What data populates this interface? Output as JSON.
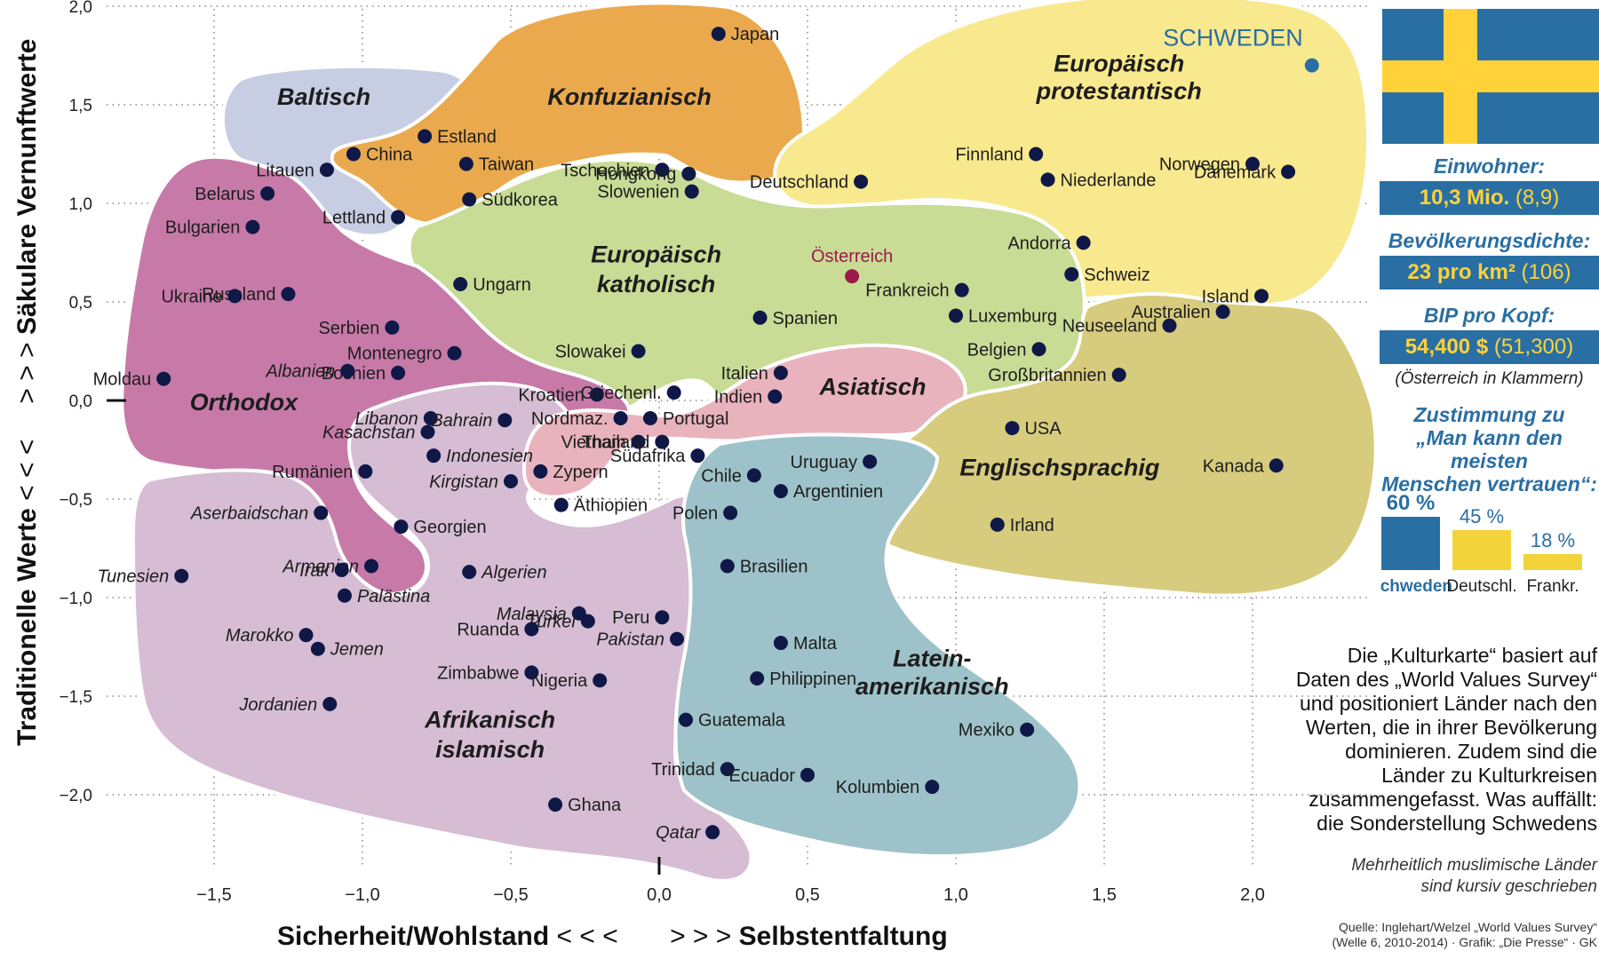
{
  "chart_data": {
    "type": "scatter",
    "xlabel_left": "Sicherheit/Wohlstand",
    "xlabel_left_arrows": "< < <",
    "xlabel_right_arrows": "> > >",
    "xlabel_right": "Selbstentfaltung",
    "ylabel_bottom": "Traditionelle Werte",
    "ylabel_bottom_arrows": "< < <",
    "ylabel_top_arrows": "> > >",
    "ylabel_top": "Säkulare Vernunftwerte",
    "xlim": [
      -2.1,
      2.2
    ],
    "ylim": [
      -2.25,
      2.0
    ],
    "x_ticks": [
      "−1,5",
      "−1,0",
      "−0,5",
      "0,0",
      "0,5",
      "1,0",
      "1,5",
      "2,0"
    ],
    "x_tick_values": [
      -1.5,
      -1.0,
      -0.5,
      0.0,
      0.5,
      1.0,
      1.5,
      2.0
    ],
    "y_ticks": [
      "2,0",
      "1,5",
      "1,0",
      "0,5",
      "0,0",
      "−0,5",
      "−1,0",
      "−1,5",
      "−2,0"
    ],
    "y_tick_values": [
      2.0,
      1.5,
      1.0,
      0.5,
      0.0,
      -0.5,
      -1.0,
      -1.5,
      -2.0
    ],
    "groups": [
      {
        "name": "Baltisch",
        "color": "#c7cde3"
      },
      {
        "name": "Konfuzianisch",
        "color": "#eba94d"
      },
      {
        "name": "Europäisch protestantisch",
        "color": "#f9e98e"
      },
      {
        "name": "Europäisch katholisch",
        "color": "#c9dc96"
      },
      {
        "name": "Orthodox",
        "color": "#c77aa8"
      },
      {
        "name": "Asiatisch",
        "color": "#e9b3bd"
      },
      {
        "name": "Englischsprachig",
        "color": "#d7cb7d"
      },
      {
        "name": "Afrikanisch islamisch",
        "color": "#d6bdd3"
      },
      {
        "name": "Lateinamerikanisch",
        "color": "#9ec2c9"
      }
    ],
    "region_labels": [
      {
        "text": "Baltisch",
        "x": -1.13,
        "y": 1.5
      },
      {
        "text": "Konfuzianisch",
        "x": -0.1,
        "y": 1.5
      },
      {
        "text": "Europäisch",
        "x": 1.55,
        "y": 1.67
      },
      {
        "text": "protestantisch",
        "x": 1.55,
        "y": 1.53
      },
      {
        "text": "Europäisch",
        "x": -0.01,
        "y": 0.7
      },
      {
        "text": "katholisch",
        "x": -0.01,
        "y": 0.55
      },
      {
        "text": "Orthodox",
        "x": -1.4,
        "y": -0.05
      },
      {
        "text": "Asiatisch",
        "x": 0.72,
        "y": 0.03
      },
      {
        "text": "Englischsprachig",
        "x": 1.35,
        "y": -0.38
      },
      {
        "text": "Afrikanisch",
        "x": -0.57,
        "y": -1.66
      },
      {
        "text": "islamisch",
        "x": -0.57,
        "y": -1.81
      },
      {
        "text": "Latein-",
        "x": 0.92,
        "y": -1.35
      },
      {
        "text": "amerikanisch",
        "x": 0.92,
        "y": -1.49
      }
    ],
    "points": [
      {
        "name": "Japan",
        "x": 0.2,
        "y": 1.86,
        "italic": false
      },
      {
        "name": "SCHWEDEN",
        "x": 2.2,
        "y": 1.7,
        "italic": false
      },
      {
        "name": "Estland",
        "x": -0.79,
        "y": 1.34,
        "italic": false
      },
      {
        "name": "Litauen",
        "x": -1.12,
        "y": 1.17,
        "italic": false
      },
      {
        "name": "China",
        "x": -1.03,
        "y": 1.25,
        "italic": false
      },
      {
        "name": "Taiwan",
        "x": -0.65,
        "y": 1.2,
        "italic": false
      },
      {
        "name": "Südkorea",
        "x": -0.64,
        "y": 1.02,
        "italic": false
      },
      {
        "name": "Tschechien",
        "x": 0.01,
        "y": 1.17,
        "italic": false
      },
      {
        "name": "Hongkong",
        "x": 0.1,
        "y": 1.15,
        "italic": false
      },
      {
        "name": "Slowenien",
        "x": 0.11,
        "y": 1.06,
        "italic": false
      },
      {
        "name": "Lettland",
        "x": -0.88,
        "y": 0.93,
        "italic": false
      },
      {
        "name": "Belarus",
        "x": -1.32,
        "y": 1.05,
        "italic": false
      },
      {
        "name": "Bulgarien",
        "x": -1.37,
        "y": 0.88,
        "italic": false
      },
      {
        "name": "Finnland",
        "x": 1.27,
        "y": 1.25,
        "italic": false
      },
      {
        "name": "Niederlande",
        "x": 1.31,
        "y": 1.12,
        "italic": false
      },
      {
        "name": "Norwegen",
        "x": 2.0,
        "y": 1.2,
        "italic": false
      },
      {
        "name": "Dänemark",
        "x": 2.12,
        "y": 1.16,
        "italic": false
      },
      {
        "name": "Deutschland",
        "x": 0.68,
        "y": 1.11,
        "italic": false
      },
      {
        "name": "Andorra",
        "x": 1.43,
        "y": 0.8,
        "italic": false
      },
      {
        "name": "Österreich",
        "x": 0.65,
        "y": 0.63,
        "italic": false,
        "highlight": true
      },
      {
        "name": "Schweiz",
        "x": 1.39,
        "y": 0.64,
        "italic": false
      },
      {
        "name": "Frankreich",
        "x": 1.02,
        "y": 0.56,
        "italic": false
      },
      {
        "name": "Luxemburg",
        "x": 1.0,
        "y": 0.43,
        "italic": false
      },
      {
        "name": "Island",
        "x": 2.03,
        "y": 0.53,
        "italic": false
      },
      {
        "name": "Australien",
        "x": 1.9,
        "y": 0.45,
        "italic": false
      },
      {
        "name": "Neuseeland",
        "x": 1.72,
        "y": 0.38,
        "italic": false
      },
      {
        "name": "Belgien",
        "x": 1.28,
        "y": 0.26,
        "italic": false
      },
      {
        "name": "Ungarn",
        "x": -0.67,
        "y": 0.59,
        "italic": false
      },
      {
        "name": "Russland",
        "x": -1.25,
        "y": 0.54,
        "italic": false
      },
      {
        "name": "Ukraine",
        "x": -1.43,
        "y": 0.53,
        "italic": false
      },
      {
        "name": "Serbien",
        "x": -0.9,
        "y": 0.37,
        "italic": false
      },
      {
        "name": "Montenegro",
        "x": -0.69,
        "y": 0.24,
        "italic": false
      },
      {
        "name": "Bosnien",
        "x": -0.88,
        "y": 0.14,
        "italic": false
      },
      {
        "name": "Albanien",
        "x": -1.05,
        "y": 0.15,
        "italic": false,
        "italic_label": true
      },
      {
        "name": "Moldau",
        "x": -1.67,
        "y": 0.11,
        "italic": false
      },
      {
        "name": "Spanien",
        "x": 0.34,
        "y": 0.42,
        "italic": false
      },
      {
        "name": "Slowakei",
        "x": -0.07,
        "y": 0.25,
        "italic": false
      },
      {
        "name": "Italien",
        "x": 0.41,
        "y": 0.14,
        "italic": false
      },
      {
        "name": "Kroatien",
        "x": -0.21,
        "y": 0.03,
        "italic": false
      },
      {
        "name": "Griechenl.",
        "x": 0.05,
        "y": 0.04,
        "italic": false
      },
      {
        "name": "Portugal",
        "x": -0.03,
        "y": -0.09,
        "italic": false
      },
      {
        "name": "Nordmaz.",
        "x": -0.13,
        "y": -0.09,
        "italic": false
      },
      {
        "name": "Indien",
        "x": 0.39,
        "y": 0.02,
        "italic": false
      },
      {
        "name": "Großbritannien",
        "x": 1.55,
        "y": 0.13,
        "italic": false
      },
      {
        "name": "USA",
        "x": 1.19,
        "y": -0.14,
        "italic": false
      },
      {
        "name": "Kanada",
        "x": 2.08,
        "y": -0.33,
        "italic": false
      },
      {
        "name": "Irland",
        "x": 1.14,
        "y": -0.63,
        "italic": false
      },
      {
        "name": "Libanon",
        "x": -0.77,
        "y": -0.09,
        "italic": false,
        "italic_label": true
      },
      {
        "name": "Bahrain",
        "x": -0.52,
        "y": -0.1,
        "italic": false,
        "italic_label": true
      },
      {
        "name": "Kasachstan",
        "x": -0.78,
        "y": -0.16,
        "italic": false,
        "italic_label": true
      },
      {
        "name": "Indonesien",
        "x": -0.76,
        "y": -0.28,
        "italic": false,
        "italic_label": true
      },
      {
        "name": "Vietnam",
        "x": -0.07,
        "y": -0.21,
        "italic": false
      },
      {
        "name": "Thailand",
        "x": 0.01,
        "y": -0.21,
        "italic": false
      },
      {
        "name": "Zypern",
        "x": -0.4,
        "y": -0.36,
        "italic": false
      },
      {
        "name": "Rumänien",
        "x": -0.99,
        "y": -0.36,
        "italic": false
      },
      {
        "name": "Kirgistan",
        "x": -0.5,
        "y": -0.41,
        "italic": false,
        "italic_label": true
      },
      {
        "name": "Äthiopien",
        "x": -0.33,
        "y": -0.53,
        "italic": false
      },
      {
        "name": "Südafrika",
        "x": 0.13,
        "y": -0.28,
        "italic": false
      },
      {
        "name": "Chile",
        "x": 0.32,
        "y": -0.38,
        "italic": false
      },
      {
        "name": "Argentinien",
        "x": 0.41,
        "y": -0.46,
        "italic": false
      },
      {
        "name": "Uruguay",
        "x": 0.71,
        "y": -0.31,
        "italic": false
      },
      {
        "name": "Polen",
        "x": 0.24,
        "y": -0.57,
        "italic": false
      },
      {
        "name": "Aserbaidschan",
        "x": -1.14,
        "y": -0.57,
        "italic": false,
        "italic_label": true
      },
      {
        "name": "Georgien",
        "x": -0.87,
        "y": -0.64,
        "italic": false
      },
      {
        "name": "Armenien",
        "x": -0.97,
        "y": -0.84,
        "italic": false,
        "italic_label": true
      },
      {
        "name": "Irak",
        "x": -1.07,
        "y": -0.86,
        "italic": false,
        "italic_label": true
      },
      {
        "name": "Tunesien",
        "x": -1.61,
        "y": -0.89,
        "italic": false,
        "italic_label": true
      },
      {
        "name": "Algerien",
        "x": -0.64,
        "y": -0.87,
        "italic": false,
        "italic_label": true
      },
      {
        "name": "Brasilien",
        "x": 0.23,
        "y": -0.84,
        "italic": false
      },
      {
        "name": "Palästina",
        "x": -1.06,
        "y": -0.99,
        "italic": false,
        "italic_label": true
      },
      {
        "name": "Malaysia",
        "x": -0.27,
        "y": -1.08,
        "italic": false,
        "italic_label": true
      },
      {
        "name": "Türkei",
        "x": -0.24,
        "y": -1.12,
        "italic": false,
        "italic_label": true
      },
      {
        "name": "Peru",
        "x": 0.01,
        "y": -1.1,
        "italic": false
      },
      {
        "name": "Ruanda",
        "x": -0.43,
        "y": -1.16,
        "italic": false
      },
      {
        "name": "Marokko",
        "x": -1.19,
        "y": -1.19,
        "italic": false,
        "italic_label": true
      },
      {
        "name": "Jemen",
        "x": -1.15,
        "y": -1.26,
        "italic": false,
        "italic_label": true
      },
      {
        "name": "Pakistan",
        "x": 0.06,
        "y": -1.21,
        "italic": false,
        "italic_label": true
      },
      {
        "name": "Malta",
        "x": 0.41,
        "y": -1.23,
        "italic": false
      },
      {
        "name": "Zimbabwe",
        "x": -0.43,
        "y": -1.38,
        "italic": false
      },
      {
        "name": "Nigeria",
        "x": -0.2,
        "y": -1.42,
        "italic": false
      },
      {
        "name": "Philippinen",
        "x": 0.33,
        "y": -1.41,
        "italic": false
      },
      {
        "name": "Jordanien",
        "x": -1.11,
        "y": -1.54,
        "italic": false,
        "italic_label": true
      },
      {
        "name": "Guatemala",
        "x": 0.09,
        "y": -1.62,
        "italic": false
      },
      {
        "name": "Mexiko",
        "x": 1.24,
        "y": -1.67,
        "italic": false
      },
      {
        "name": "Trinidad",
        "x": 0.23,
        "y": -1.87,
        "italic": false
      },
      {
        "name": "Ecuador",
        "x": 0.5,
        "y": -1.9,
        "italic": false
      },
      {
        "name": "Kolumbien",
        "x": 0.92,
        "y": -1.96,
        "italic": false
      },
      {
        "name": "Ghana",
        "x": -0.35,
        "y": -2.05,
        "italic": false
      },
      {
        "name": "Qatar",
        "x": 0.18,
        "y": -2.19,
        "italic": false,
        "italic_label": true
      }
    ]
  },
  "sidebar": {
    "einwohner_label": "Einwohner:",
    "einwohner_value": "10,3 Mio.",
    "einwohner_paren": "(8,9)",
    "dichte_label": "Bevölkerungsdichte:",
    "dichte_value": "23 pro km²",
    "dichte_paren": "(106)",
    "bip_label": "BIP pro Kopf:",
    "bip_value": "54,400 $",
    "bip_paren": "(51,300)",
    "oesterreich_note": "(Österreich in Klammern)",
    "zustimmung_line1": "Zustimmung zu",
    "zustimmung_line2": "„Man kann den meisten",
    "zustimmung_line3": "Menschen vertrauen“:",
    "bars": [
      {
        "label": "Schweden",
        "percent": "60 %",
        "value": 60,
        "color": "#2a6fa3"
      },
      {
        "label": "Deutschl.",
        "percent": "45 %",
        "value": 45,
        "color": "#f2d43a"
      },
      {
        "label": "Frankr.",
        "percent": "18 %",
        "value": 18,
        "color": "#f2d43a"
      }
    ]
  },
  "description": [
    "Die „Kulturkarte“ basiert auf",
    "Daten des „World Values Survey“",
    "und positioniert Länder nach den",
    "Werten, die in ihrer Bevölkerung",
    "dominieren. Zudem sind die",
    "Länder zu Kulturkreisen",
    "zusammengefasst. Was auffällt:",
    "die Sonderstellung Schwedens"
  ],
  "muslim_note": [
    "Mehrheitlich muslimische Länder",
    "sind kursiv geschrieben"
  ],
  "source": [
    "Quelle: Inglehart/Welzel „World Values Survey“",
    "(Welle 6, 2010-2014) · Grafik: „Die Presse“ · GK"
  ],
  "colors": {
    "navy": "#0f1847",
    "blue": "#2a6fa3",
    "yellow": "#ffd23a",
    "austria": "#9c1a4a"
  }
}
